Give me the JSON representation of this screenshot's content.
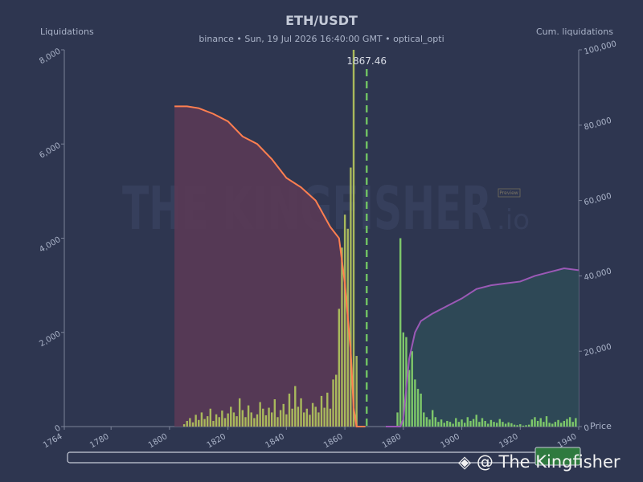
{
  "chart_data": {
    "type": "liquidation",
    "title": "ETH/USDT",
    "subtitle": "binance  •  Sun, 19 Jul 2026 16:40:00 GMT  •  optical_opti",
    "y_label": "Liquidations",
    "y2_label": "Cum. liquidations",
    "x_label": "Price",
    "current_price": 1867.46,
    "current_price_color": "#6fbf63",
    "watermark": "THE KINGFISHER",
    "watermark_suffix": ".io",
    "watermark_badge": "Preview",
    "credit": "@ The Kingfisher",
    "xlim": [
      1764,
      1940
    ],
    "xticks": [
      1764,
      1780,
      1800,
      1820,
      1840,
      1860,
      1880,
      1900,
      1920,
      1940
    ],
    "ylim": [
      0,
      8000
    ],
    "yticks": [
      0,
      {
        "value": 2000,
        "label": "2,000"
      },
      {
        "value": 4000,
        "label": "4,000"
      },
      {
        "value": 6000,
        "label": "6,000"
      },
      {
        "value": 8000,
        "label": "8,000"
      }
    ],
    "y2lim": [
      0,
      100000
    ],
    "y2ticks": [
      0,
      {
        "value": 20000,
        "label": "20,000"
      },
      {
        "value": 40000,
        "label": "40,000"
      },
      {
        "value": 60000,
        "label": "60,000"
      },
      {
        "value": 80000,
        "label": "80,000"
      },
      {
        "value": 100000,
        "label": "100,000"
      }
    ],
    "bars": [
      {
        "color": "#a9b95c",
        "x": [
          1805,
          1806,
          1807,
          1808,
          1809,
          1810,
          1811,
          1812,
          1813,
          1814,
          1815,
          1816,
          1817,
          1818,
          1819,
          1820,
          1821,
          1822,
          1823,
          1824,
          1825,
          1826,
          1827,
          1828,
          1829,
          1830,
          1831,
          1832,
          1833,
          1834,
          1835,
          1836,
          1837,
          1838,
          1839,
          1840,
          1841,
          1842,
          1843,
          1844,
          1845,
          1846,
          1847,
          1848,
          1849,
          1850,
          1851,
          1852,
          1853,
          1854,
          1855,
          1856,
          1857,
          1858,
          1859,
          1860,
          1861,
          1862,
          1863,
          1864
        ],
        "values": [
          50,
          120,
          180,
          90,
          250,
          140,
          300,
          160,
          220,
          380,
          120,
          260,
          200,
          340,
          180,
          280,
          420,
          300,
          220,
          600,
          350,
          200,
          450,
          300,
          180,
          260,
          520,
          380,
          240,
          400,
          300,
          580,
          200,
          350,
          480,
          260,
          700,
          380,
          860,
          420,
          600,
          300,
          380,
          250,
          500,
          420,
          300,
          650,
          400,
          720,
          380,
          1000,
          1100,
          2500,
          3800,
          4500,
          4200,
          5500,
          8000,
          1500
        ]
      },
      {
        "color": "#7ec86a",
        "x": [
          1878,
          1879,
          1880,
          1881,
          1882,
          1883,
          1884,
          1885,
          1886,
          1887,
          1888,
          1889,
          1890,
          1891,
          1892,
          1893,
          1894,
          1895,
          1896,
          1897,
          1898,
          1899,
          1900,
          1901,
          1902,
          1903,
          1904,
          1905,
          1906,
          1907,
          1908,
          1909,
          1910,
          1911,
          1912,
          1913,
          1914,
          1915,
          1916,
          1917,
          1918,
          1919,
          1920,
          1921,
          1922,
          1923,
          1924,
          1925,
          1926,
          1927,
          1928,
          1929,
          1930,
          1931,
          1932,
          1933,
          1934,
          1935,
          1936,
          1937,
          1938,
          1939
        ],
        "values": [
          300,
          4000,
          2000,
          1900,
          1200,
          1600,
          1000,
          800,
          700,
          300,
          200,
          150,
          350,
          200,
          100,
          150,
          80,
          120,
          100,
          60,
          180,
          100,
          150,
          80,
          200,
          120,
          160,
          250,
          100,
          180,
          120,
          60,
          140,
          100,
          80,
          160,
          100,
          60,
          90,
          70,
          40,
          30,
          50,
          20,
          30,
          40,
          150,
          200,
          120,
          180,
          100,
          220,
          80,
          60,
          100,
          140,
          80,
          120,
          160,
          200,
          100,
          180
        ]
      }
    ],
    "series": [
      {
        "axis": "y2",
        "color": "#ff7f50",
        "fill": "#5a3a55",
        "x": [
          1801.7,
          1806,
          1810,
          1815,
          1820,
          1825,
          1830,
          1835,
          1840,
          1845,
          1850,
          1855,
          1858,
          1860,
          1862,
          1863,
          1864,
          1867
        ],
        "values": [
          85000,
          85000,
          84500,
          83000,
          81000,
          77000,
          75000,
          71000,
          66000,
          63500,
          60000,
          53000,
          50000,
          38000,
          20000,
          5000,
          0,
          0
        ]
      },
      {
        "axis": "y2",
        "color": "#9b59b6",
        "fill": "#2f4a56",
        "x": [
          1874,
          1879,
          1880,
          1881,
          1882,
          1884,
          1886,
          1890,
          1895,
          1900,
          1905,
          1910,
          1915,
          1920,
          1925,
          1930,
          1935,
          1940
        ],
        "values": [
          0,
          0,
          2000,
          10000,
          18000,
          25000,
          28000,
          30000,
          32000,
          34000,
          36500,
          37500,
          38000,
          38500,
          40000,
          41000,
          42000,
          41500
        ]
      }
    ]
  }
}
